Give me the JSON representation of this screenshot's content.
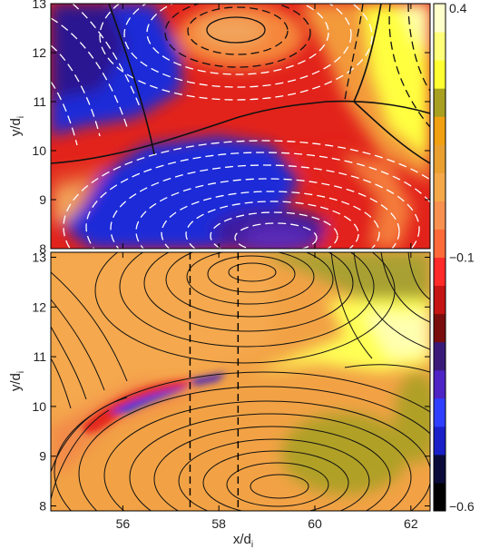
{
  "chart_data": [
    {
      "type": "heatmap",
      "panel": "top",
      "ylabel": "y/d",
      "ylabel_sub": "i",
      "xlim": [
        54.5,
        62.4
      ],
      "ylim": [
        8.0,
        13.0
      ],
      "yticks": [
        8,
        9,
        10,
        11,
        12,
        13
      ],
      "xticks": [
        56,
        58,
        60,
        62
      ],
      "show_xtick_labels": false,
      "field_lines": "solid black where flux increasing, dashed white/black elsewhere",
      "regions": [
        {
          "name": "negative lower island",
          "center": [
            58.8,
            8.6
          ],
          "value": -0.45
        },
        {
          "name": "negative upper-left island",
          "center": [
            54.8,
            11.8
          ],
          "value": -0.4
        },
        {
          "name": "positive upper island",
          "center": [
            58.0,
            12.3
          ],
          "value": -0.1
        },
        {
          "name": "outflow right",
          "center": [
            61.6,
            11.0
          ],
          "value": 0.35
        }
      ]
    },
    {
      "type": "heatmap",
      "panel": "bottom",
      "xlabel": "x/d",
      "xlabel_sub": "i",
      "ylabel": "y/d",
      "ylabel_sub": "i",
      "xlim": [
        54.5,
        62.4
      ],
      "ylim": [
        7.9,
        13.1
      ],
      "yticks": [
        8,
        9,
        10,
        11,
        12,
        13
      ],
      "xticks": [
        56,
        58,
        60,
        62
      ],
      "xtick_labels": [
        "56",
        "58",
        "60",
        "62"
      ],
      "ytick_labels": [
        "8",
        "9",
        "10",
        "11",
        "12",
        "13"
      ],
      "vertical_dashed_lines_x": [
        57.4,
        58.4
      ],
      "regions": [
        {
          "name": "current sheet",
          "center": [
            57.0,
            10.3
          ],
          "value": -0.35
        },
        {
          "name": "upper background",
          "center": [
            58.0,
            12.0
          ],
          "value": 0.15
        },
        {
          "name": "right outflow",
          "center": [
            61.0,
            10.8
          ],
          "value": 0.35
        },
        {
          "name": "lower-right island",
          "center": [
            61.0,
            9.0
          ],
          "value": 0.25
        }
      ]
    }
  ],
  "colorbar": {
    "min": -0.6,
    "max": 0.4,
    "tick_labels": [
      "0.4",
      "−0.1",
      "−0.6"
    ],
    "tick_values": [
      0.4,
      -0.1,
      -0.6
    ],
    "colors": [
      "#000000",
      "#0b0b3a",
      "#1a20c8",
      "#2e3fff",
      "#4e24c4",
      "#3a1a78",
      "#7a0e0e",
      "#c41414",
      "#ff2a2a",
      "#ff6a3a",
      "#f79050",
      "#f5a84a",
      "#e9a030",
      "#f0a010",
      "#a8a020",
      "#ffff33",
      "#ffff7a",
      "#ffffcc"
    ]
  }
}
